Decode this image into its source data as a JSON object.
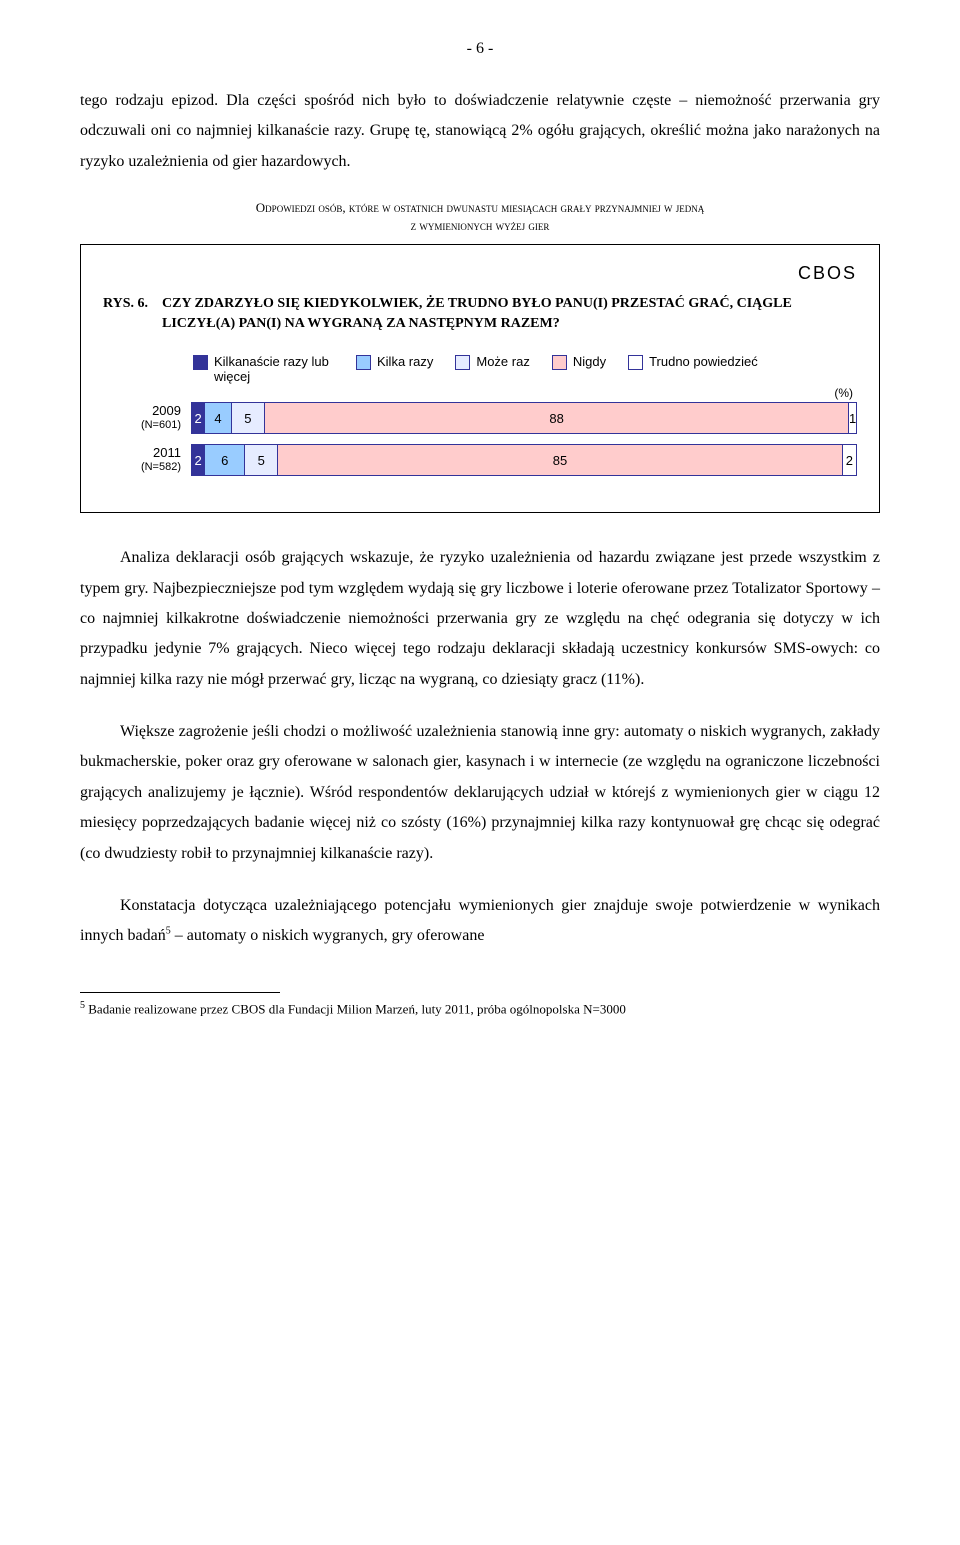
{
  "page_number": "- 6 -",
  "intro_paragraph": "tego rodzaju epizod. Dla części spośród nich było to doświadczenie relatywnie częste – niemożność przerwania gry odczuwali oni co najmniej kilkanaście razy. Grupę tę, stanowiącą 2% ogółu grających, określić można jako narażonych na ryzyko uzależnienia od gier hazardowych.",
  "smallcaps_l1": "Odpowiedzi osób, które w ostatnich dwunastu miesiącach grały przynajmniej w jedną",
  "smallcaps_l2": "z wymienionych wyżej gier",
  "cbos_label": "CBOS",
  "fig_rys": "RYS. 6.",
  "fig_title": "CZY ZDARZYŁO SIĘ KIEDYKOLWIEK, ŻE TRUDNO BYŁO PANU(I) PRZESTAĆ GRAĆ, CIĄGLE LICZYŁ(A) PAN(I) NA WYGRANĄ ZA NASTĘPNYM RAZEM?",
  "legend": {
    "items": [
      {
        "label": "Kilkanaście razy lub więcej",
        "color": "#333399"
      },
      {
        "label": "Kilka razy",
        "color": "#99ccff"
      },
      {
        "label": "Może raz",
        "color": "#e6ecff"
      },
      {
        "label": "Nigdy",
        "color": "#ffcccc"
      },
      {
        "label": "Trudno powiedzieć",
        "color": "#ffffff"
      }
    ]
  },
  "pct_suffix": "(%)",
  "chart": {
    "type": "stacked-bar-horizontal",
    "border_color": "#333399",
    "rows": [
      {
        "year": "2009",
        "n": "(N=601)",
        "segments": [
          {
            "value": 2,
            "color": "#333399",
            "text_color": "#ffffff"
          },
          {
            "value": 4,
            "color": "#99ccff",
            "text_color": "#000000"
          },
          {
            "value": 5,
            "color": "#e6ecff",
            "text_color": "#000000"
          },
          {
            "value": 88,
            "color": "#ffcccc",
            "text_color": "#000000"
          },
          {
            "value": 1,
            "color": "#ffffff",
            "text_color": "#000000"
          }
        ]
      },
      {
        "year": "2011",
        "n": "(N=582)",
        "segments": [
          {
            "value": 2,
            "color": "#333399",
            "text_color": "#ffffff"
          },
          {
            "value": 6,
            "color": "#99ccff",
            "text_color": "#000000"
          },
          {
            "value": 5,
            "color": "#e6ecff",
            "text_color": "#000000"
          },
          {
            "value": 85,
            "color": "#ffcccc",
            "text_color": "#000000"
          },
          {
            "value": 2,
            "color": "#ffffff",
            "text_color": "#000000"
          }
        ]
      }
    ]
  },
  "para2": "Analiza deklaracji osób grających wskazuje, że ryzyko uzależnienia od hazardu związane jest przede wszystkim z typem gry. Najbezpieczniejsze pod tym względem wydają się gry liczbowe i loterie oferowane przez Totalizator Sportowy – co najmniej kilkakrotne doświadczenie niemożności przerwania gry ze względu na chęć odegrania się dotyczy w ich przypadku jedynie 7% grających. Nieco więcej tego rodzaju deklaracji składają uczestnicy konkursów SMS-owych: co najmniej kilka razy nie mógł przerwać gry, licząc na wygraną, co dziesiąty gracz (11%).",
  "para3": "Większe zagrożenie jeśli chodzi o możliwość uzależnienia stanowią inne gry: automaty o niskich wygranych, zakłady bukmacherskie, poker oraz gry oferowane w salonach gier, kasynach i w internecie (ze względu na ograniczone liczebności grających analizujemy je łącznie). Wśród respondentów deklarujących udział w którejś z wymienionych gier w ciągu 12 miesięcy poprzedzających badanie więcej niż co szósty (16%) przynajmniej kilka razy kontynuował grę chcąc się odegrać (co dwudziesty robił to przynajmniej kilkanaście razy).",
  "para4_pre": "Konstatacja dotycząca uzależniającego potencjału wymienionych gier znajduje swoje potwierdzenie w wynikach innych badań",
  "para4_sup": "5",
  "para4_post": " – automaty o niskich wygranych, gry oferowane",
  "footnote_sup": "5",
  "footnote_text": " Badanie realizowane przez CBOS dla Fundacji Milion Marzeń, luty 2011, próba ogólnopolska N=3000"
}
